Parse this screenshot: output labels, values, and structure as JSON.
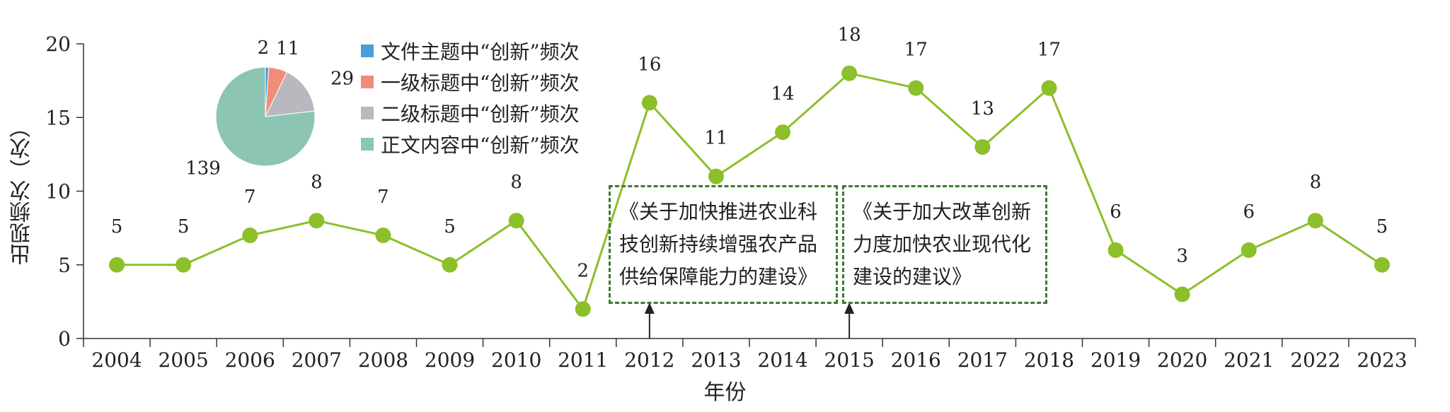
{
  "chart_data": [
    {
      "type": "line",
      "xlabel": "年份",
      "ylabel": "出现频次（次）",
      "categories": [
        "2004",
        "2005",
        "2006",
        "2007",
        "2008",
        "2009",
        "2010",
        "2011",
        "2012",
        "2013",
        "2014",
        "2015",
        "2016",
        "2017",
        "2018",
        "2019",
        "2020",
        "2021",
        "2022",
        "2023"
      ],
      "values": [
        5,
        5,
        7,
        8,
        7,
        5,
        8,
        2,
        16,
        11,
        14,
        18,
        17,
        13,
        17,
        6,
        3,
        6,
        8,
        5
      ],
      "ylim": [
        0,
        20
      ],
      "yticks": [
        "0",
        "5",
        "10",
        "15",
        "20"
      ],
      "grid": false,
      "line_color": "#8cbf2a",
      "annotations": [
        {
          "lines": [
            "《关于加快推进农业科",
            "技创新持续增强农产品",
            "供给保障能力的建设》"
          ],
          "arrow_at": "2012"
        },
        {
          "lines": [
            "《关于加大改革创新",
            "力度加快农业现代化",
            "建设的建议》"
          ],
          "arrow_at": "2015"
        }
      ]
    },
    {
      "type": "pie",
      "labels": [
        "文件主题中“创新”频次",
        "一级标题中“创新”频次",
        "二级标题中“创新”频次",
        "正文内容中“创新”频次"
      ],
      "values": [
        2,
        11,
        29,
        139
      ],
      "colors": [
        "#4a9fd8",
        "#f08c78",
        "#b8b8be",
        "#8cc5b4"
      ],
      "legend_position": "right"
    }
  ]
}
